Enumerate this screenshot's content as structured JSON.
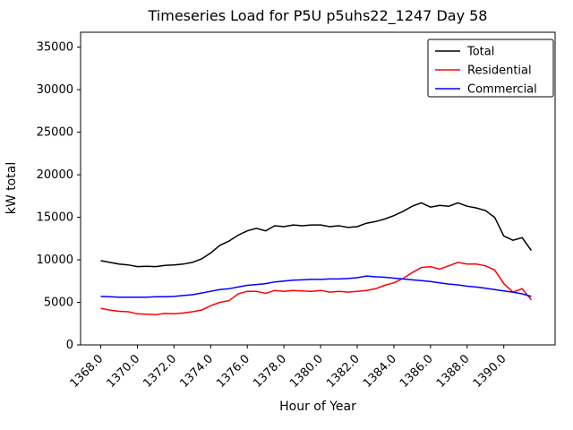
{
  "figure": {
    "background": "#ffffff"
  },
  "chart_data": {
    "type": "line",
    "title": "Timeseries Load for P5U p5uhs22_1247  Day 58",
    "xlabel": "Hour of Year",
    "ylabel": "kW total",
    "xlim": [
      1366.9,
      1392.8
    ],
    "ylim": [
      0,
      36750
    ],
    "grid": false,
    "legend_position": "upper right",
    "xticks": [
      1368,
      1370,
      1372,
      1374,
      1376,
      1378,
      1380,
      1382,
      1384,
      1386,
      1388,
      1390
    ],
    "xtick_labels": [
      "1368.0",
      "1370.0",
      "1372.0",
      "1374.0",
      "1376.0",
      "1378.0",
      "1380.0",
      "1382.0",
      "1384.0",
      "1386.0",
      "1388.0",
      "1390.0"
    ],
    "yticks": [
      0,
      5000,
      10000,
      15000,
      20000,
      25000,
      30000,
      35000
    ],
    "ytick_labels": [
      "0",
      "5000",
      "10000",
      "15000",
      "20000",
      "25000",
      "30000",
      "35000"
    ],
    "x": [
      1368.0,
      1368.5,
      1369.0,
      1369.5,
      1370.0,
      1370.5,
      1371.0,
      1371.5,
      1372.0,
      1372.5,
      1373.0,
      1373.5,
      1374.0,
      1374.5,
      1375.0,
      1375.5,
      1376.0,
      1376.5,
      1377.0,
      1377.5,
      1378.0,
      1378.5,
      1379.0,
      1379.5,
      1380.0,
      1380.5,
      1381.0,
      1381.5,
      1382.0,
      1382.5,
      1383.0,
      1383.5,
      1384.0,
      1384.5,
      1385.0,
      1385.5,
      1386.0,
      1386.5,
      1387.0,
      1387.5,
      1388.0,
      1388.5,
      1389.0,
      1389.5,
      1390.0,
      1390.5,
      1391.0,
      1391.5
    ],
    "series": [
      {
        "name": "Total",
        "color": "#000000",
        "y": [
          9900,
          9700,
          9500,
          9400,
          9200,
          9250,
          9200,
          9350,
          9400,
          9500,
          9700,
          10100,
          10800,
          11700,
          12200,
          12900,
          13400,
          13700,
          13400,
          14000,
          13900,
          14100,
          14000,
          14100,
          14100,
          13900,
          14000,
          13800,
          13900,
          14300,
          14500,
          14800,
          15200,
          15700,
          16300,
          16700,
          16200,
          16400,
          16300,
          16700,
          16300,
          16100,
          15800,
          15000,
          12800,
          12300,
          12600,
          11100
        ]
      },
      {
        "name": "Residential",
        "color": "#ff0000",
        "y": [
          4300,
          4100,
          3950,
          3900,
          3650,
          3600,
          3550,
          3700,
          3650,
          3750,
          3900,
          4100,
          4600,
          5000,
          5200,
          6000,
          6300,
          6300,
          6050,
          6400,
          6300,
          6400,
          6350,
          6300,
          6400,
          6200,
          6300,
          6200,
          6300,
          6400,
          6600,
          7000,
          7300,
          7800,
          8500,
          9100,
          9200,
          8900,
          9300,
          9700,
          9500,
          9500,
          9300,
          8800,
          7200,
          6200,
          6600,
          5300
        ]
      },
      {
        "name": "Commercial",
        "color": "#0000ff",
        "y": [
          5700,
          5650,
          5600,
          5600,
          5600,
          5600,
          5650,
          5650,
          5700,
          5800,
          5900,
          6100,
          6300,
          6500,
          6600,
          6800,
          7000,
          7100,
          7200,
          7400,
          7500,
          7600,
          7650,
          7700,
          7700,
          7750,
          7750,
          7800,
          7900,
          8100,
          8000,
          7950,
          7850,
          7750,
          7650,
          7550,
          7450,
          7300,
          7150,
          7050,
          6900,
          6800,
          6650,
          6500,
          6350,
          6200,
          6000,
          5700
        ]
      }
    ]
  }
}
